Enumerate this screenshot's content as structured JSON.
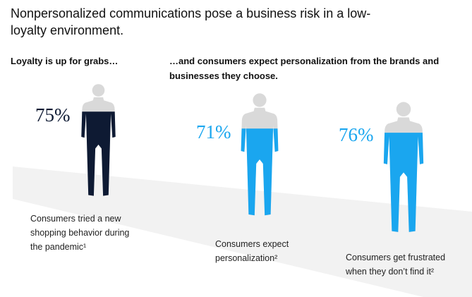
{
  "chart_data": {
    "type": "pictogram",
    "title": "Nonpersonalized communications pose a business risk in a low-loyalty environment.",
    "headings": [
      "Loyalty is up for grabs…",
      "…and consumers expect personalization from the brands and businesses they choose."
    ],
    "categories": [
      "Consumers tried a new shopping behavior during the pandemic¹",
      "Consumers expect personalization²",
      "Consumers get frustrated when they don’t find it²"
    ],
    "values": [
      75,
      71,
      76
    ],
    "value_labels": [
      "75%",
      "71%",
      "76%"
    ],
    "colors": [
      "#0e1a33",
      "#1aa6ef",
      "#1aa6ef"
    ],
    "empty_color": "#d9d9d9"
  }
}
